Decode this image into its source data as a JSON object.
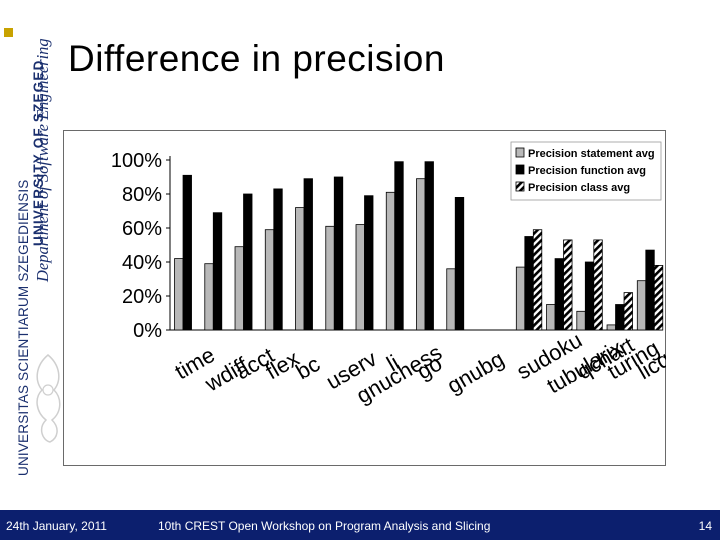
{
  "banner": {
    "university_latin": "UNIVERSITAS SCIENTIARUM SZEGEDIENSIS",
    "university_name": "UNIVERSITY OF SZEGED",
    "department": "Department of Software Engineering"
  },
  "slide": {
    "title": "Difference in precision"
  },
  "footer": {
    "date": "24th January, 2011",
    "event": "10th CREST Open Workshop on Program Analysis and Slicing",
    "page": "14"
  },
  "colors": {
    "statement": "#b8b8b8",
    "function": "#000000",
    "class_stripe": "#000000",
    "footer_bg": "#0c1f6e"
  },
  "chart_data": {
    "type": "bar",
    "title": "",
    "xlabel": "",
    "ylabel": "",
    "ylim": [
      0,
      100
    ],
    "yticks": [
      "0%",
      "20%",
      "40%",
      "60%",
      "80%",
      "100%"
    ],
    "categories": [
      "time",
      "wdiff",
      "acct",
      "flex",
      "bc",
      "userv",
      "gnuchess",
      "li",
      "go",
      "gnubg",
      "sudoku",
      "tubularix",
      "qchart",
      "turing",
      "licq"
    ],
    "series": [
      {
        "name": "Precision statement avg",
        "values": [
          42,
          39,
          49,
          59,
          72,
          61,
          62,
          81,
          89,
          36,
          37,
          15,
          11,
          3,
          29
        ]
      },
      {
        "name": "Precision function avg",
        "values": [
          91,
          69,
          80,
          83,
          89,
          90,
          79,
          99,
          99,
          78,
          55,
          42,
          40,
          15,
          47
        ]
      },
      {
        "name": "Precision class avg",
        "values": [
          null,
          null,
          null,
          null,
          null,
          null,
          null,
          null,
          null,
          null,
          59,
          53,
          53,
          22,
          38
        ]
      }
    ],
    "legend_position": "top-right"
  }
}
